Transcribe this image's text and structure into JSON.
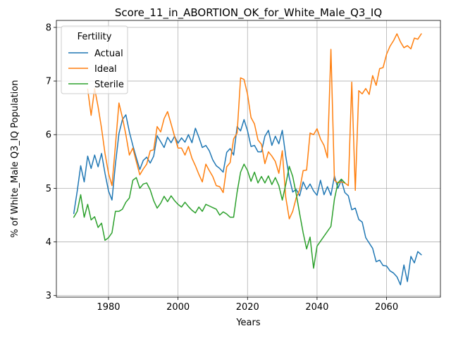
{
  "chart_data": {
    "type": "line",
    "title": "Score_11_in_ABORTION_OK_for_White_Male_Q3_IQ",
    "xlabel": "Years",
    "ylabel": "% of White_Male Q3_IQ Population",
    "xlim": [
      1965,
      2075.5
    ],
    "ylim": [
      2.97,
      8.13
    ],
    "xticks": [
      1980,
      2000,
      2020,
      2040,
      2060
    ],
    "yticks": [
      3,
      4,
      5,
      6,
      7,
      8
    ],
    "grid": true,
    "legend": {
      "title": "Fertility",
      "position": "top-left"
    },
    "series": [
      {
        "name": "Actual",
        "color": "#1f77b4",
        "points": [
          [
            1970,
            4.53
          ],
          [
            1971,
            4.95
          ],
          [
            1972,
            5.42
          ],
          [
            1973,
            5.12
          ],
          [
            1974,
            5.6
          ],
          [
            1975,
            5.37
          ],
          [
            1976,
            5.62
          ],
          [
            1977,
            5.4
          ],
          [
            1978,
            5.65
          ],
          [
            1979,
            5.28
          ],
          [
            1980,
            4.95
          ],
          [
            1981,
            4.78
          ],
          [
            1982,
            5.45
          ],
          [
            1983,
            6.02
          ],
          [
            1984,
            6.28
          ],
          [
            1985,
            6.37
          ],
          [
            1986,
            6.05
          ],
          [
            1987,
            5.8
          ],
          [
            1988,
            5.57
          ],
          [
            1989,
            5.35
          ],
          [
            1990,
            5.52
          ],
          [
            1991,
            5.58
          ],
          [
            1992,
            5.47
          ],
          [
            1993,
            5.6
          ],
          [
            1994,
            5.98
          ],
          [
            1995,
            5.87
          ],
          [
            1996,
            5.76
          ],
          [
            1997,
            5.95
          ],
          [
            1998,
            5.85
          ],
          [
            1999,
            5.97
          ],
          [
            2000,
            5.84
          ],
          [
            2001,
            5.94
          ],
          [
            2002,
            5.86
          ],
          [
            2003,
            6.0
          ],
          [
            2004,
            5.85
          ],
          [
            2005,
            6.12
          ],
          [
            2006,
            5.95
          ],
          [
            2007,
            5.76
          ],
          [
            2008,
            5.8
          ],
          [
            2009,
            5.7
          ],
          [
            2010,
            5.53
          ],
          [
            2011,
            5.42
          ],
          [
            2012,
            5.37
          ],
          [
            2013,
            5.3
          ],
          [
            2014,
            5.67
          ],
          [
            2015,
            5.74
          ],
          [
            2016,
            5.62
          ],
          [
            2017,
            6.15
          ],
          [
            2018,
            6.07
          ],
          [
            2019,
            6.28
          ],
          [
            2020,
            6.07
          ],
          [
            2021,
            5.78
          ],
          [
            2022,
            5.8
          ],
          [
            2023,
            5.68
          ],
          [
            2024,
            5.68
          ],
          [
            2025,
            5.97
          ],
          [
            2026,
            6.08
          ],
          [
            2027,
            5.8
          ],
          [
            2028,
            5.97
          ],
          [
            2029,
            5.83
          ],
          [
            2030,
            6.08
          ],
          [
            2031,
            5.6
          ],
          [
            2032,
            5.2
          ],
          [
            2033,
            4.93
          ],
          [
            2034,
            4.98
          ],
          [
            2035,
            4.86
          ],
          [
            2036,
            5.12
          ],
          [
            2037,
            4.98
          ],
          [
            2038,
            5.08
          ],
          [
            2039,
            4.95
          ],
          [
            2040,
            4.87
          ],
          [
            2041,
            5.15
          ],
          [
            2042,
            4.88
          ],
          [
            2043,
            5.03
          ],
          [
            2044,
            4.87
          ],
          [
            2045,
            5.23
          ],
          [
            2046,
            5.0
          ],
          [
            2047,
            5.15
          ],
          [
            2048,
            4.92
          ],
          [
            2049,
            4.86
          ],
          [
            2050,
            4.6
          ],
          [
            2051,
            4.63
          ],
          [
            2052,
            4.42
          ],
          [
            2053,
            4.37
          ],
          [
            2054,
            4.08
          ],
          [
            2055,
            3.98
          ],
          [
            2056,
            3.88
          ],
          [
            2057,
            3.63
          ],
          [
            2058,
            3.66
          ],
          [
            2059,
            3.56
          ],
          [
            2060,
            3.55
          ],
          [
            2061,
            3.46
          ],
          [
            2062,
            3.42
          ],
          [
            2063,
            3.35
          ],
          [
            2064,
            3.2
          ],
          [
            2065,
            3.57
          ],
          [
            2066,
            3.26
          ],
          [
            2067,
            3.73
          ],
          [
            2068,
            3.61
          ],
          [
            2069,
            3.82
          ],
          [
            2070,
            3.76
          ]
        ]
      },
      {
        "name": "Ideal",
        "color": "#ff7f0e",
        "points": [
          [
            1974,
            6.85
          ],
          [
            1975,
            6.36
          ],
          [
            1976,
            6.86
          ],
          [
            1977,
            6.52
          ],
          [
            1978,
            6.12
          ],
          [
            1979,
            5.65
          ],
          [
            1980,
            5.28
          ],
          [
            1981,
            5.05
          ],
          [
            1982,
            5.8
          ],
          [
            1983,
            6.59
          ],
          [
            1984,
            6.32
          ],
          [
            1985,
            6.0
          ],
          [
            1986,
            5.62
          ],
          [
            1987,
            5.75
          ],
          [
            1988,
            5.5
          ],
          [
            1989,
            5.25
          ],
          [
            1990,
            5.36
          ],
          [
            1991,
            5.45
          ],
          [
            1992,
            5.7
          ],
          [
            1993,
            5.72
          ],
          [
            1994,
            6.15
          ],
          [
            1995,
            6.05
          ],
          [
            1996,
            6.3
          ],
          [
            1997,
            6.43
          ],
          [
            1998,
            6.2
          ],
          [
            1999,
            5.97
          ],
          [
            2000,
            5.75
          ],
          [
            2001,
            5.75
          ],
          [
            2002,
            5.62
          ],
          [
            2003,
            5.78
          ],
          [
            2004,
            5.56
          ],
          [
            2005,
            5.42
          ],
          [
            2006,
            5.26
          ],
          [
            2007,
            5.12
          ],
          [
            2008,
            5.45
          ],
          [
            2009,
            5.33
          ],
          [
            2010,
            5.22
          ],
          [
            2011,
            5.05
          ],
          [
            2012,
            5.03
          ],
          [
            2013,
            4.92
          ],
          [
            2014,
            5.4
          ],
          [
            2015,
            5.48
          ],
          [
            2016,
            5.92
          ],
          [
            2017,
            6.03
          ],
          [
            2018,
            7.06
          ],
          [
            2019,
            7.03
          ],
          [
            2020,
            6.75
          ],
          [
            2021,
            6.32
          ],
          [
            2022,
            6.2
          ],
          [
            2023,
            5.9
          ],
          [
            2024,
            5.82
          ],
          [
            2025,
            5.46
          ],
          [
            2026,
            5.68
          ],
          [
            2027,
            5.6
          ],
          [
            2028,
            5.5
          ],
          [
            2029,
            5.28
          ],
          [
            2030,
            5.7
          ],
          [
            2031,
            4.83
          ],
          [
            2032,
            4.43
          ],
          [
            2033,
            4.57
          ],
          [
            2034,
            4.82
          ],
          [
            2035,
            4.97
          ],
          [
            2036,
            5.33
          ],
          [
            2037,
            5.34
          ],
          [
            2038,
            6.03
          ],
          [
            2039,
            6.0
          ],
          [
            2040,
            6.11
          ],
          [
            2041,
            5.92
          ],
          [
            2042,
            5.8
          ],
          [
            2043,
            5.57
          ],
          [
            2044,
            7.59
          ],
          [
            2045,
            5.15
          ],
          [
            2046,
            5.1
          ],
          [
            2047,
            5.12
          ],
          [
            2048,
            5.1
          ],
          [
            2049,
            5.05
          ],
          [
            2050,
            6.98
          ],
          [
            2051,
            4.96
          ],
          [
            2052,
            6.82
          ],
          [
            2053,
            6.76
          ],
          [
            2054,
            6.86
          ],
          [
            2055,
            6.75
          ],
          [
            2056,
            7.1
          ],
          [
            2057,
            6.92
          ],
          [
            2058,
            7.23
          ],
          [
            2059,
            7.25
          ],
          [
            2060,
            7.5
          ],
          [
            2061,
            7.65
          ],
          [
            2062,
            7.75
          ],
          [
            2063,
            7.88
          ],
          [
            2064,
            7.73
          ],
          [
            2065,
            7.62
          ],
          [
            2066,
            7.66
          ],
          [
            2067,
            7.6
          ],
          [
            2068,
            7.8
          ],
          [
            2069,
            7.78
          ],
          [
            2070,
            7.88
          ]
        ]
      },
      {
        "name": "Sterile",
        "color": "#2ca02c",
        "points": [
          [
            1970,
            4.46
          ],
          [
            1971,
            4.57
          ],
          [
            1972,
            4.88
          ],
          [
            1973,
            4.46
          ],
          [
            1974,
            4.7
          ],
          [
            1975,
            4.41
          ],
          [
            1976,
            4.47
          ],
          [
            1977,
            4.27
          ],
          [
            1978,
            4.35
          ],
          [
            1979,
            4.03
          ],
          [
            1980,
            4.08
          ],
          [
            1981,
            4.17
          ],
          [
            1982,
            4.57
          ],
          [
            1983,
            4.57
          ],
          [
            1984,
            4.61
          ],
          [
            1985,
            4.74
          ],
          [
            1986,
            4.82
          ],
          [
            1987,
            5.15
          ],
          [
            1988,
            5.2
          ],
          [
            1989,
            5.0
          ],
          [
            1990,
            5.08
          ],
          [
            1991,
            5.1
          ],
          [
            1992,
            4.97
          ],
          [
            1993,
            4.77
          ],
          [
            1994,
            4.63
          ],
          [
            1995,
            4.72
          ],
          [
            1996,
            4.85
          ],
          [
            1997,
            4.75
          ],
          [
            1998,
            4.86
          ],
          [
            1999,
            4.77
          ],
          [
            2000,
            4.7
          ],
          [
            2001,
            4.65
          ],
          [
            2002,
            4.74
          ],
          [
            2003,
            4.66
          ],
          [
            2004,
            4.59
          ],
          [
            2005,
            4.54
          ],
          [
            2006,
            4.65
          ],
          [
            2007,
            4.57
          ],
          [
            2008,
            4.7
          ],
          [
            2009,
            4.67
          ],
          [
            2010,
            4.64
          ],
          [
            2011,
            4.61
          ],
          [
            2012,
            4.5
          ],
          [
            2013,
            4.56
          ],
          [
            2014,
            4.52
          ],
          [
            2015,
            4.46
          ],
          [
            2016,
            4.46
          ],
          [
            2017,
            4.93
          ],
          [
            2018,
            5.3
          ],
          [
            2019,
            5.45
          ],
          [
            2020,
            5.33
          ],
          [
            2021,
            5.13
          ],
          [
            2022,
            5.3
          ],
          [
            2023,
            5.1
          ],
          [
            2024,
            5.22
          ],
          [
            2025,
            5.1
          ],
          [
            2026,
            5.23
          ],
          [
            2027,
            5.07
          ],
          [
            2028,
            5.2
          ],
          [
            2029,
            5.05
          ],
          [
            2030,
            4.78
          ],
          [
            2031,
            5.07
          ],
          [
            2032,
            5.41
          ],
          [
            2033,
            5.22
          ],
          [
            2034,
            4.9
          ],
          [
            2035,
            4.53
          ],
          [
            2036,
            4.17
          ],
          [
            2037,
            3.87
          ],
          [
            2038,
            4.09
          ],
          [
            2039,
            3.51
          ],
          [
            2040,
            3.92
          ],
          [
            2044,
            4.29
          ],
          [
            2045,
            4.8
          ],
          [
            2046,
            5.1
          ],
          [
            2047,
            5.17
          ],
          [
            2048,
            5.1
          ]
        ]
      }
    ]
  }
}
